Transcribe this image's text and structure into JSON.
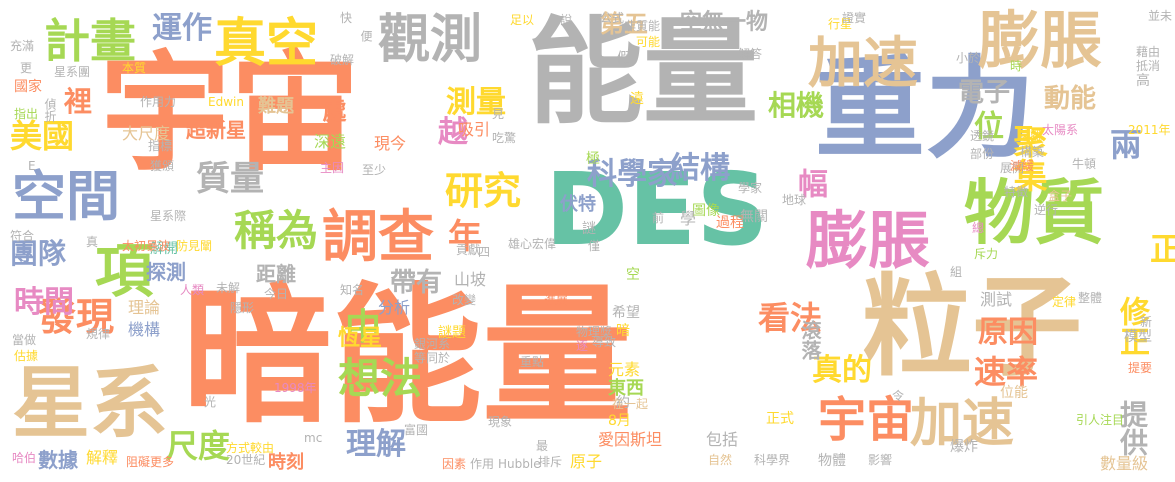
{
  "words": [
    {
      "t": "暗能量",
      "c": "c2"
    },
    {
      "t": "宇宙",
      "c": "c2"
    },
    {
      "t": "重力",
      "c": "c3"
    },
    {
      "t": "能量",
      "c": "c8"
    },
    {
      "t": "DES",
      "c": "c1"
    },
    {
      "t": "粒子",
      "c": "c7"
    },
    {
      "t": "物質",
      "c": "c5"
    },
    {
      "t": "星系",
      "c": "c7"
    },
    {
      "t": "膨脹",
      "c": "c7"
    },
    {
      "t": "膨脹",
      "c": "c4"
    },
    {
      "t": "加速",
      "c": "c7"
    },
    {
      "t": "加速",
      "c": "c7"
    },
    {
      "t": "調查",
      "c": "c2"
    },
    {
      "t": "空間",
      "c": "c3"
    },
    {
      "t": "觀測",
      "c": "c8"
    },
    {
      "t": "真空",
      "c": "c6"
    },
    {
      "t": "計畫",
      "c": "c5"
    },
    {
      "t": "宇宙",
      "c": "c2"
    },
    {
      "t": "項",
      "c": "c5"
    },
    {
      "t": "稱為",
      "c": "c5"
    },
    {
      "t": "研究",
      "c": "c6"
    },
    {
      "t": "想法",
      "c": "c5"
    },
    {
      "t": "發現",
      "c": "c2"
    },
    {
      "t": "質量",
      "c": "c8"
    },
    {
      "t": "運作",
      "c": "c3"
    },
    {
      "t": "測量",
      "c": "c6"
    },
    {
      "t": "美國",
      "c": "c6"
    },
    {
      "t": "科學家",
      "c": "c3"
    },
    {
      "t": "結構",
      "c": "c3"
    },
    {
      "t": "兩",
      "c": "c3"
    },
    {
      "t": "正",
      "c": "c6"
    },
    {
      "t": "中",
      "c": "c5"
    },
    {
      "t": "年",
      "c": "c2"
    },
    {
      "t": "時間",
      "c": "c4"
    },
    {
      "t": "團隊",
      "c": "c3"
    },
    {
      "t": "看法",
      "c": "c2"
    },
    {
      "t": "速率",
      "c": "c2"
    },
    {
      "t": "原因",
      "c": "c2"
    },
    {
      "t": "修正",
      "c": "c6"
    },
    {
      "t": "真的",
      "c": "c6"
    },
    {
      "t": "尺度",
      "c": "c5"
    },
    {
      "t": "理解",
      "c": "c3"
    },
    {
      "t": "提供",
      "c": "c8"
    },
    {
      "t": "聚集",
      "c": "c6"
    },
    {
      "t": "裡",
      "c": "c2"
    },
    {
      "t": "越",
      "c": "c4"
    },
    {
      "t": "相機",
      "c": "c5"
    },
    {
      "t": "位",
      "c": "c5"
    },
    {
      "t": "幅",
      "c": "c4"
    },
    {
      "t": "電子",
      "c": "c8"
    },
    {
      "t": "動能",
      "c": "c7"
    },
    {
      "t": "第五",
      "c": "c7"
    },
    {
      "t": "空無一物",
      "c": "c8"
    },
    {
      "t": "帶有",
      "c": "c8"
    },
    {
      "t": "恆星",
      "c": "c6"
    },
    {
      "t": "距離",
      "c": "c8"
    },
    {
      "t": "滾落",
      "c": "c8"
    },
    {
      "t": "數據",
      "c": "c3"
    },
    {
      "t": "解釋",
      "c": "c6"
    },
    {
      "t": "時刻",
      "c": "c2"
    },
    {
      "t": "超新星",
      "c": "c2"
    },
    {
      "t": "大尺度",
      "c": "c7"
    },
    {
      "t": "難題",
      "c": "c7"
    },
    {
      "t": "處",
      "c": "c2"
    },
    {
      "t": "吸引",
      "c": "c2"
    },
    {
      "t": "現今",
      "c": "c2"
    },
    {
      "t": "深遠",
      "c": "c5"
    },
    {
      "t": "主因",
      "c": "c4"
    },
    {
      "t": "至少",
      "c": "c8"
    },
    {
      "t": "Edwin",
      "c": "c6"
    },
    {
      "t": "作用力",
      "c": "c8"
    },
    {
      "t": "星系團",
      "c": "c8"
    },
    {
      "t": "國家",
      "c": "c2"
    },
    {
      "t": "偵折",
      "c": "c8"
    },
    {
      "t": "探測",
      "c": "c3"
    },
    {
      "t": "解開",
      "c": "c1"
    },
    {
      "t": "太初暴波",
      "c": "c2"
    },
    {
      "t": "防見闡",
      "c": "c6"
    },
    {
      "t": "理論",
      "c": "c7"
    },
    {
      "t": "機構",
      "c": "c3"
    },
    {
      "t": "分析",
      "c": "c3"
    },
    {
      "t": "山坡",
      "c": "c8"
    },
    {
      "t": "謎題",
      "c": "c6"
    },
    {
      "t": "伏特",
      "c": "c3"
    },
    {
      "t": "圖像",
      "c": "c5"
    },
    {
      "t": "過程",
      "c": "c2"
    },
    {
      "t": "學",
      "c": "c8"
    },
    {
      "t": "無關",
      "c": "c8"
    },
    {
      "t": "希望",
      "c": "c8"
    },
    {
      "t": "元素",
      "c": "c6"
    },
    {
      "t": "東西",
      "c": "c5"
    },
    {
      "t": "約",
      "c": "c8"
    },
    {
      "t": "8月",
      "c": "c6"
    },
    {
      "t": "在一起",
      "c": "c7"
    },
    {
      "t": "愛因斯坦",
      "c": "c2"
    },
    {
      "t": "包括",
      "c": "c8"
    },
    {
      "t": "原子",
      "c": "c6"
    },
    {
      "t": "物體",
      "c": "c8"
    },
    {
      "t": "正式",
      "c": "c6"
    },
    {
      "t": "位能",
      "c": "c7"
    },
    {
      "t": "測試",
      "c": "c8"
    },
    {
      "t": "模型",
      "c": "c8"
    },
    {
      "t": "數量級",
      "c": "c7"
    },
    {
      "t": "引人注目",
      "c": "c5"
    },
    {
      "t": "影響",
      "c": "c8"
    },
    {
      "t": "爆炸",
      "c": "c8"
    },
    {
      "t": "科學界",
      "c": "c8"
    },
    {
      "t": "自然",
      "c": "c7"
    },
    {
      "t": "Hubble",
      "c": "c8"
    },
    {
      "t": "作用",
      "c": "c8"
    },
    {
      "t": "因素",
      "c": "c2"
    },
    {
      "t": "20世紀",
      "c": "c8"
    },
    {
      "t": "阻礙更多",
      "c": "c2"
    },
    {
      "t": "哈伯",
      "c": "c4"
    },
    {
      "t": "方式較由",
      "c": "c6"
    },
    {
      "t": "1998年",
      "c": "c4"
    },
    {
      "t": "現象",
      "c": "c8"
    },
    {
      "t": "銀河系",
      "c": "c8"
    },
    {
      "t": "等同於",
      "c": "c8"
    },
    {
      "t": "規律",
      "c": "c8"
    },
    {
      "t": "當做",
      "c": "c8"
    },
    {
      "t": "估據",
      "c": "c6"
    },
    {
      "t": "今日",
      "c": "c8"
    },
    {
      "t": "未解",
      "c": "c8"
    },
    {
      "t": "人類",
      "c": "c4"
    },
    {
      "t": "知名",
      "c": "c8"
    },
    {
      "t": "改變",
      "c": "c8"
    },
    {
      "t": "進展",
      "c": "c2"
    },
    {
      "t": "四",
      "c": "c8"
    },
    {
      "t": "僅",
      "c": "c8"
    },
    {
      "t": "謎",
      "c": "c8"
    },
    {
      "t": "空",
      "c": "c5"
    },
    {
      "t": "暗",
      "c": "c6"
    },
    {
      "t": "重點",
      "c": "c8"
    },
    {
      "t": "導致",
      "c": "c8"
    },
    {
      "t": "物理獎",
      "c": "c8"
    },
    {
      "t": "逐",
      "c": "c4"
    },
    {
      "t": "假",
      "c": "c8"
    },
    {
      "t": "前",
      "c": "c8"
    },
    {
      "t": "遠",
      "c": "c6"
    },
    {
      "t": "極",
      "c": "c5"
    },
    {
      "t": "吃驚",
      "c": "c8"
    },
    {
      "t": "雄心宏偉",
      "c": "c8"
    },
    {
      "t": "貢獻",
      "c": "c8"
    },
    {
      "t": "透鏡",
      "c": "c8"
    },
    {
      "t": "部份",
      "c": "c8"
    },
    {
      "t": "遠離",
      "c": "c6"
    },
    {
      "t": "太陽系",
      "c": "c4"
    },
    {
      "t": "構築",
      "c": "c8"
    },
    {
      "t": "展開",
      "c": "c8"
    },
    {
      "t": "盒子",
      "c": "c7"
    },
    {
      "t": "學家",
      "c": "c8"
    },
    {
      "t": "地球",
      "c": "c8"
    },
    {
      "t": "減緩",
      "c": "c2"
    },
    {
      "t": "特徵",
      "c": "c8"
    },
    {
      "t": "牛頓",
      "c": "c8"
    },
    {
      "t": "總",
      "c": "c4"
    },
    {
      "t": "逆行",
      "c": "c8"
    },
    {
      "t": "斥力",
      "c": "c5"
    },
    {
      "t": "組",
      "c": "c8"
    },
    {
      "t": "定律",
      "c": "c6"
    },
    {
      "t": "整體",
      "c": "c8"
    },
    {
      "t": "令",
      "c": "c8"
    },
    {
      "t": "新",
      "c": "c8"
    },
    {
      "t": "提要",
      "c": "c2"
    },
    {
      "t": "2011年",
      "c": "c6"
    },
    {
      "t": "高",
      "c": "c8"
    },
    {
      "t": "藉由",
      "c": "c8"
    },
    {
      "t": "抵消",
      "c": "c8"
    },
    {
      "t": "並未",
      "c": "c8"
    },
    {
      "t": "行星",
      "c": "c6"
    },
    {
      "t": "證實",
      "c": "c8"
    },
    {
      "t": "解答",
      "c": "c8"
    },
    {
      "t": "小於",
      "c": "c8"
    },
    {
      "t": "時",
      "c": "c5"
    },
    {
      "t": "公式",
      "c": "c8"
    },
    {
      "t": "非質能",
      "c": "c8"
    },
    {
      "t": "可能",
      "c": "c6"
    },
    {
      "t": "說",
      "c": "c8"
    },
    {
      "t": "足以",
      "c": "c6"
    },
    {
      "t": "快",
      "c": "c8"
    },
    {
      "t": "便",
      "c": "c8"
    },
    {
      "t": "破解",
      "c": "c8"
    },
    {
      "t": "本質",
      "c": "c6"
    },
    {
      "t": "見",
      "c": "c8"
    },
    {
      "t": "更",
      "c": "c8"
    },
    {
      "t": "充滿",
      "c": "c8"
    },
    {
      "t": "指出",
      "c": "c5"
    },
    {
      "t": "指標",
      "c": "c8"
    },
    {
      "t": "獲頒",
      "c": "c8"
    },
    {
      "t": "星系際",
      "c": "c8"
    },
    {
      "t": "符合",
      "c": "c8"
    },
    {
      "t": "真",
      "c": "c8"
    },
    {
      "t": "隱形",
      "c": "c8"
    },
    {
      "t": "光",
      "c": "c8"
    },
    {
      "t": "mc",
      "c": "c8"
    },
    {
      "t": "富國",
      "c": "c8"
    },
    {
      "t": "排斥",
      "c": "c8"
    },
    {
      "t": "最",
      "c": "c8"
    },
    {
      "t": "E",
      "c": "c8"
    }
  ]
}
